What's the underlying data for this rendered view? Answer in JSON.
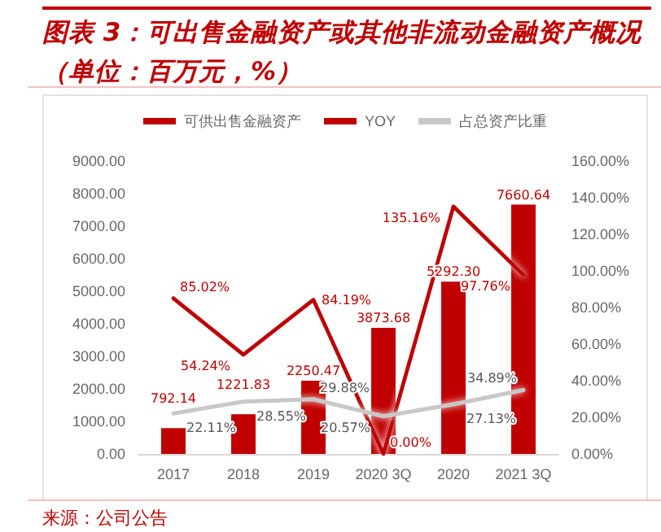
{
  "chart_data": {
    "type": "bar",
    "title": "图表 3：可出售金融资产或其他非流动金融资产概况（单位：百万元，%）",
    "annotations": [
      "来源：公司公告"
    ],
    "categories": [
      "2017",
      "2018",
      "2019",
      "2020 3Q",
      "2020",
      "2021 3Q"
    ],
    "series": [
      {
        "name": "可供出售金融资产",
        "color": "#c00000",
        "values": [
          792.14,
          1221.83,
          2250.47,
          3873.68,
          5292.3,
          7660.64
        ],
        "value_labels": [
          "792.14",
          "1221.83",
          "2250.47",
          "3873.68",
          "5292.30",
          "7660.64"
        ]
      },
      {
        "name": "YOY",
        "type": "line",
        "axis": "y2",
        "color": "#c00000",
        "values": [
          85.02,
          54.24,
          84.19,
          0.0,
          135.16,
          97.76
        ],
        "value_labels": [
          "85.02%",
          "54.24%",
          "84.19%",
          "0.00%",
          "135.16%",
          "97.76%"
        ]
      },
      {
        "name": "占总资产比重",
        "type": "line",
        "axis": "y2",
        "color": "#c8c8c8",
        "values": [
          22.11,
          28.55,
          29.88,
          20.57,
          27.13,
          34.89
        ],
        "value_labels": [
          "22.11%",
          "28.55%",
          "29.88%",
          "20.57%",
          "27.13%",
          "34.89%"
        ]
      }
    ],
    "ylim": [
      0,
      9000
    ],
    "yticks": [
      {
        "value": 0,
        "label": "0.00"
      },
      {
        "value": 1000,
        "label": "1000.00"
      },
      {
        "value": 2000,
        "label": "2000.00"
      },
      {
        "value": 3000,
        "label": "3000.00"
      },
      {
        "value": 4000,
        "label": "4000.00"
      },
      {
        "value": 5000,
        "label": "5000.00"
      },
      {
        "value": 6000,
        "label": "6000.00"
      },
      {
        "value": 7000,
        "label": "7000.00"
      },
      {
        "value": 8000,
        "label": "8000.00"
      },
      {
        "value": 9000,
        "label": "9000.00"
      }
    ],
    "y2lim": [
      0,
      160
    ],
    "y2ticks": [
      {
        "value": 0,
        "label": "0.00%"
      },
      {
        "value": 20,
        "label": "20.00%"
      },
      {
        "value": 40,
        "label": "40.00%"
      },
      {
        "value": 60,
        "label": "60.00%"
      },
      {
        "value": 80,
        "label": "80.00%"
      },
      {
        "value": 100,
        "label": "100.00%"
      },
      {
        "value": 120,
        "label": "120.00%"
      },
      {
        "value": 140,
        "label": "140.00%"
      },
      {
        "value": 160,
        "label": "160.00%"
      }
    ],
    "grid": false,
    "legend": "top",
    "marker": "none",
    "line_style": "solid"
  }
}
